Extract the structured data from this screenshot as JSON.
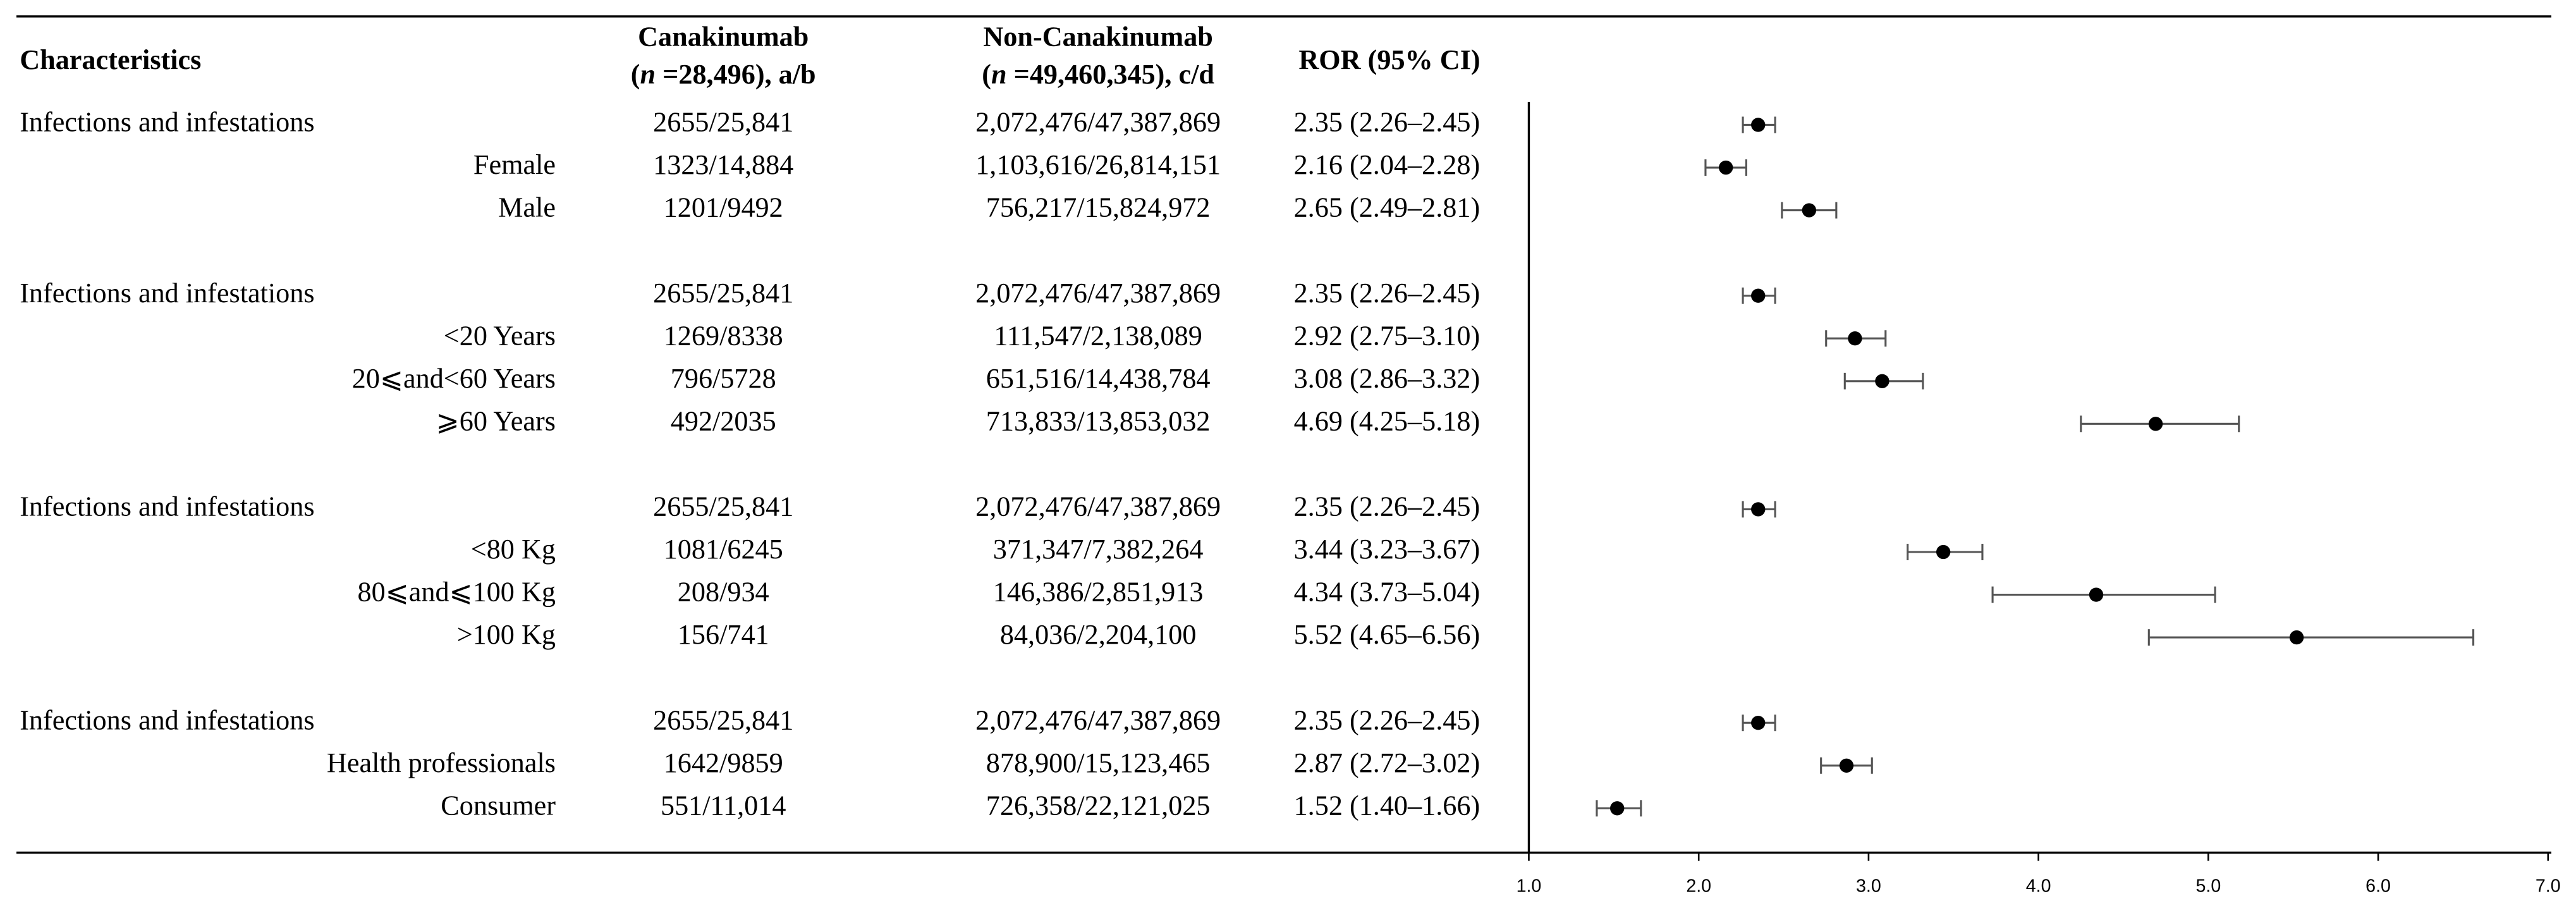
{
  "chart_data": {
    "type": "forest",
    "header": {
      "characteristics": "Characteristics",
      "col1": {
        "title": "Canakinumab",
        "open": "(",
        "italic": "n",
        "rest": " =28,496), a/b"
      },
      "col2": {
        "title": "Non-Canakinumab",
        "open": "(",
        "italic": "n",
        "rest": " =49,460,345), c/d"
      },
      "col3": "ROR (95% CI)"
    },
    "groups": [
      {
        "categories": [
          "Infections and infestations",
          "Female",
          "Male"
        ],
        "a_b": [
          "2655/25,841",
          "1323/14,884",
          "1201/9492"
        ],
        "c_d": [
          "2,072,476/47,387,869",
          "1,103,616/26,814,151",
          "756,217/15,824,972"
        ],
        "values": [
          2.35,
          2.16,
          2.65
        ],
        "lower": [
          2.26,
          2.04,
          2.49
        ],
        "upper": [
          2.45,
          2.28,
          2.81
        ],
        "value_labels": [
          "2.35 (2.26–2.45)",
          "2.16 (2.04–2.28)",
          "2.65 (2.49–2.81)"
        ]
      },
      {
        "categories": [
          "Infections and infestations",
          "<20 Years",
          "20⩽and<60 Years",
          "⩾60 Years"
        ],
        "a_b": [
          "2655/25,841",
          "1269/8338",
          "796/5728",
          "492/2035"
        ],
        "c_d": [
          "2,072,476/47,387,869",
          "111,547/2,138,089",
          "651,516/14,438,784",
          "713,833/13,853,032"
        ],
        "values": [
          2.35,
          2.92,
          3.08,
          4.69
        ],
        "lower": [
          2.26,
          2.75,
          2.86,
          4.25
        ],
        "upper": [
          2.45,
          3.1,
          3.32,
          5.18
        ],
        "value_labels": [
          "2.35 (2.26–2.45)",
          "2.92 (2.75–3.10)",
          "3.08 (2.86–3.32)",
          "4.69 (4.25–5.18)"
        ]
      },
      {
        "categories": [
          "Infections and infestations",
          "<80 Kg",
          "80⩽and⩽100 Kg",
          ">100 Kg"
        ],
        "a_b": [
          "2655/25,841",
          "1081/6245",
          "208/934",
          "156/741"
        ],
        "c_d": [
          "2,072,476/47,387,869",
          "371,347/7,382,264",
          "146,386/2,851,913",
          "84,036/2,204,100"
        ],
        "values": [
          2.35,
          3.44,
          4.34,
          5.52
        ],
        "lower": [
          2.26,
          3.23,
          3.73,
          4.65
        ],
        "upper": [
          2.45,
          3.67,
          5.04,
          6.56
        ],
        "value_labels": [
          "2.35 (2.26–2.45)",
          "3.44 (3.23–3.67)",
          "4.34 (3.73–5.04)",
          "5.52 (4.65–6.56)"
        ]
      },
      {
        "categories": [
          "Infections and infestations",
          "Health professionals",
          "Consumer"
        ],
        "a_b": [
          "2655/25,841",
          "1642/9859",
          "551/11,014"
        ],
        "c_d": [
          "2,072,476/47,387,869",
          "878,900/15,123,465",
          "726,358/22,121,025"
        ],
        "values": [
          2.35,
          2.87,
          1.52
        ],
        "lower": [
          2.26,
          2.72,
          1.4
        ],
        "upper": [
          2.45,
          3.02,
          1.66
        ],
        "value_labels": [
          "2.35 (2.26–2.45)",
          "2.87 (2.72–3.02)",
          "1.52 (1.40–1.66)"
        ]
      }
    ],
    "xlim": [
      1,
      7
    ],
    "xticks": [
      {
        "value": 1,
        "label": "1.0"
      },
      {
        "value": 2,
        "label": "2.0"
      },
      {
        "value": 3,
        "label": "3.0"
      },
      {
        "value": 4,
        "label": "4.0"
      },
      {
        "value": 5,
        "label": "5.0"
      },
      {
        "value": 6,
        "label": "6.0"
      },
      {
        "value": 7,
        "label": "7.0"
      }
    ],
    "color": "#000000",
    "bar_color": "#555555"
  }
}
